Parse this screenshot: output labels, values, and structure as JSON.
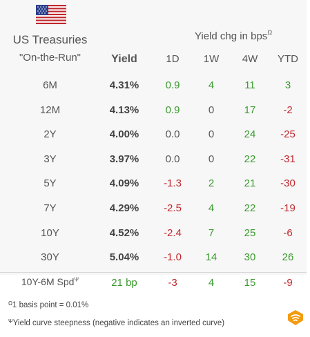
{
  "header": {
    "title": "US Treasuries",
    "subtitle": "\"On-the-Run\"",
    "group_label": "Yield chg in bps",
    "group_marker": "Ω",
    "yield_col": "Yield",
    "cols": [
      "1D",
      "1W",
      "4W",
      "YTD"
    ]
  },
  "rows": [
    {
      "label": "6M",
      "yield": "4.31%",
      "d1": "0.9",
      "w1": "4",
      "w4": "11",
      "ytd": "3"
    },
    {
      "label": "12M",
      "yield": "4.13%",
      "d1": "0.9",
      "w1": "0",
      "w4": "17",
      "ytd": "-2"
    },
    {
      "label": "2Y",
      "yield": "4.00%",
      "d1": "0.0",
      "w1": "0",
      "w4": "24",
      "ytd": "-25"
    },
    {
      "label": "3Y",
      "yield": "3.97%",
      "d1": "0.0",
      "w1": "0",
      "w4": "22",
      "ytd": "-31"
    },
    {
      "label": "5Y",
      "yield": "4.09%",
      "d1": "-1.3",
      "w1": "2",
      "w4": "21",
      "ytd": "-30"
    },
    {
      "label": "7Y",
      "yield": "4.29%",
      "d1": "-2.5",
      "w1": "4",
      "w4": "22",
      "ytd": "-19"
    },
    {
      "label": "10Y",
      "yield": "4.52%",
      "d1": "-2.4",
      "w1": "7",
      "w4": "25",
      "ytd": "-6"
    },
    {
      "label": "30Y",
      "yield": "5.04%",
      "d1": "-1.0",
      "w1": "14",
      "w4": "30",
      "ytd": "26"
    }
  ],
  "spread": {
    "label": "10Y-6M Spd",
    "marker": "Ψ",
    "yield": "21 bp",
    "d1": "-3",
    "w1": "4",
    "w4": "15",
    "ytd": "-9"
  },
  "notes": {
    "n1_marker": "Ω",
    "n1": "1 basis point = 0.01%",
    "n2_marker": "Ψ",
    "n2": "Yield curve steepness (negative indicates an inverted curve)"
  },
  "colors": {
    "positive": "#3a9a2e",
    "negative": "#c0272d",
    "neutral": "#555555",
    "panel": "#f7f7f7",
    "brand": "#f39c12"
  },
  "icons": {
    "flag": "us-flag-icon",
    "logo": "brand-logo-icon"
  }
}
